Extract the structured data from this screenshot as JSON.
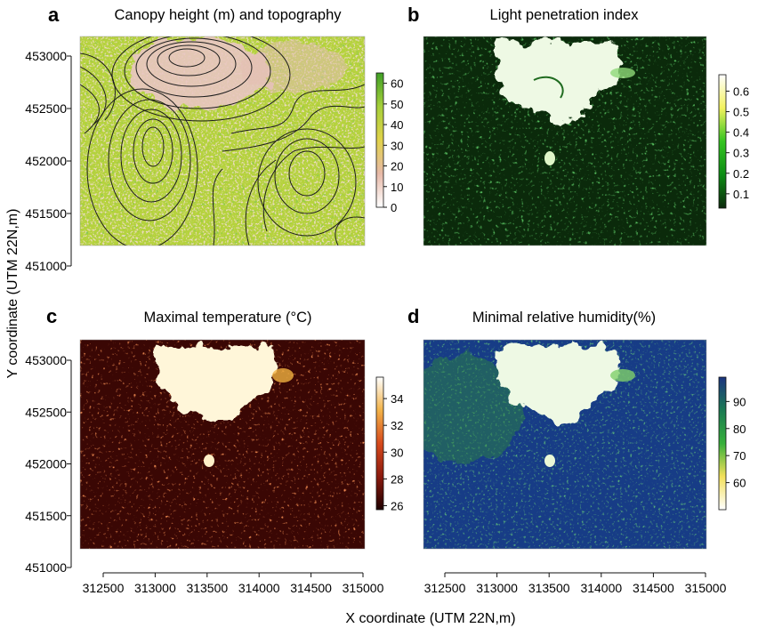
{
  "figure": {
    "xlabel": "X coordinate (UTM 22N,m)",
    "ylabel": "Y coordinate (UTM 22N,m)"
  },
  "chart_data": [
    {
      "type": "heatmap",
      "letter": "a",
      "title": "Canopy height (m) and topography",
      "colorbar": {
        "ticks": [
          "0",
          "10",
          "20",
          "30",
          "40",
          "50",
          "60"
        ],
        "range": [
          0,
          65
        ]
      },
      "colors": [
        "#ffffff",
        "#e7b9a8",
        "#e1d24a",
        "#a6cf3a",
        "#3f9f26"
      ],
      "overlay": "topographic contours"
    },
    {
      "type": "heatmap",
      "letter": "b",
      "title": "Light penetration index",
      "colorbar": {
        "ticks": [
          "0.1",
          "0.2",
          "0.3",
          "0.4",
          "0.5",
          "0.6"
        ],
        "range": [
          0.03,
          0.68
        ]
      },
      "colors": [
        "#0c2a0c",
        "#0c8c14",
        "#34c420",
        "#f3f25e",
        "#ffffff"
      ]
    },
    {
      "type": "heatmap",
      "letter": "c",
      "title": "Maximal temperature (°C)",
      "colorbar": {
        "ticks": [
          "26",
          "28",
          "30",
          "32",
          "34"
        ],
        "range": [
          25.7,
          35.6
        ]
      },
      "colors": [
        "#1f0000",
        "#8b1a0e",
        "#d6491c",
        "#f2b248",
        "#ffffff"
      ]
    },
    {
      "type": "heatmap",
      "letter": "d",
      "title": "Minimal relative humidity(%)",
      "colorbar": {
        "ticks": [
          "60",
          "70",
          "80",
          "90"
        ],
        "range": [
          50,
          99
        ]
      },
      "colors": [
        "#ffffff",
        "#f3e05a",
        "#36b03a",
        "#1b7a53",
        "#1b3480"
      ]
    }
  ],
  "axes": {
    "y_ticks": [
      "451000",
      "451500",
      "452000",
      "452500",
      "453000"
    ],
    "y_values": [
      451000,
      451500,
      452000,
      452500,
      453000
    ],
    "x_ticks": [
      "312500",
      "313000",
      "313500",
      "314000",
      "314500",
      "315000"
    ],
    "x_values": [
      312500,
      313000,
      313500,
      314000,
      314500,
      315000
    ],
    "x_range": [
      312000,
      315000
    ],
    "y_range": [
      451000,
      453150
    ]
  }
}
